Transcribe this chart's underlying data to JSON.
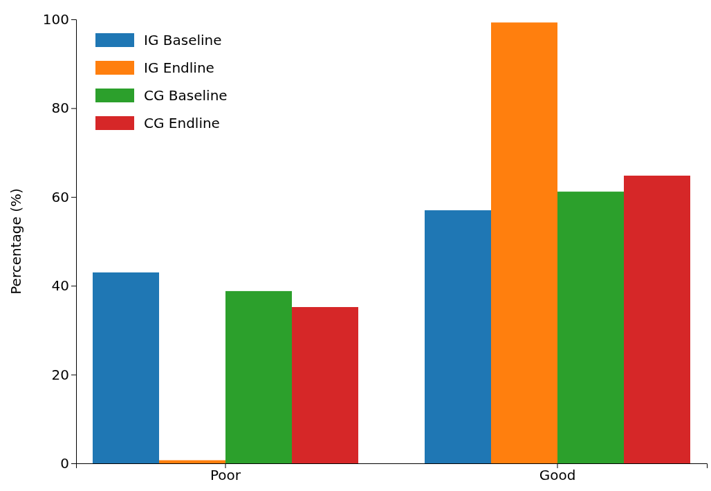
{
  "chart_data": {
    "type": "bar",
    "ylabel": "Percentage (%)",
    "categories": [
      "Poor",
      "Good"
    ],
    "series": [
      {
        "name": "IG Baseline",
        "color": "#1f77b4",
        "values": [
          43.0,
          57.0
        ]
      },
      {
        "name": "IG Endline",
        "color": "#ff7f0e",
        "values": [
          0.7,
          99.3
        ]
      },
      {
        "name": "CG Baseline",
        "color": "#2ca02c",
        "values": [
          38.8,
          61.2
        ]
      },
      {
        "name": "CG Endline",
        "color": "#d62728",
        "values": [
          35.2,
          64.8
        ]
      }
    ],
    "ylim": [
      0,
      100
    ],
    "yticks": [
      0,
      20,
      40,
      60,
      80,
      100
    ],
    "grid": false,
    "legend": "top left"
  }
}
